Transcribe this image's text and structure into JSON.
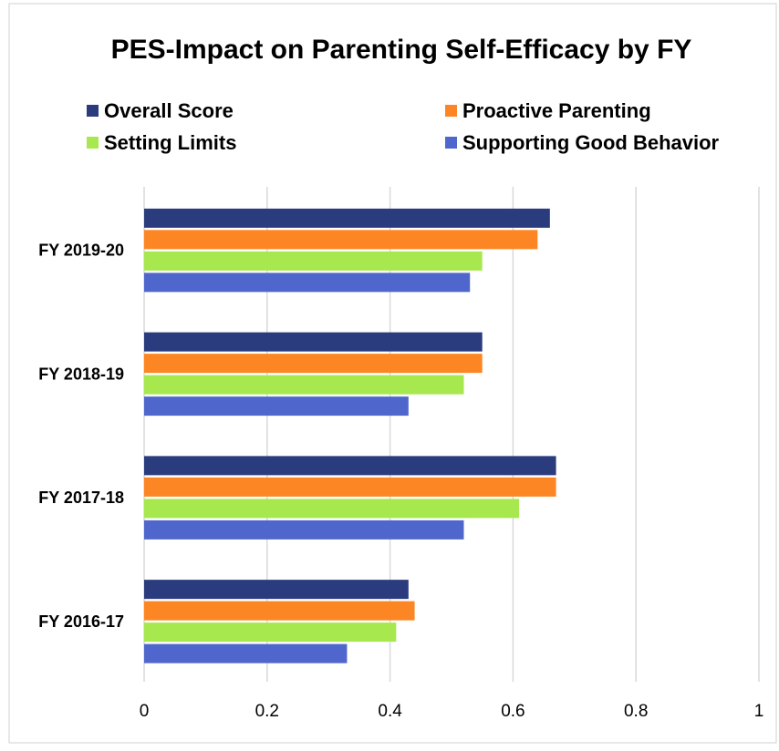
{
  "chart_data": {
    "type": "hbar",
    "title": "PES-Impact on Parenting Self-Efficacy by FY",
    "categories": [
      "FY 2019-20",
      "FY 2018-19",
      "FY 2017-18",
      "FY 2016-17"
    ],
    "series": [
      {
        "name": "Overall Score",
        "color": "#2a3c7e",
        "values": [
          0.66,
          0.55,
          0.67,
          0.43
        ]
      },
      {
        "name": "Proactive Parenting",
        "color": "#fd8624",
        "values": [
          0.64,
          0.55,
          0.67,
          0.44
        ]
      },
      {
        "name": "Setting Limits",
        "color": "#a8e84f",
        "values": [
          0.55,
          0.52,
          0.61,
          0.41
        ]
      },
      {
        "name": "Supporting Good Behavior",
        "color": "#4f67cc",
        "values": [
          0.53,
          0.43,
          0.52,
          0.33
        ]
      }
    ],
    "xlim": [
      0,
      1
    ],
    "xticks": [
      0,
      0.2,
      0.4,
      0.6,
      0.8,
      1
    ],
    "grid": true
  }
}
